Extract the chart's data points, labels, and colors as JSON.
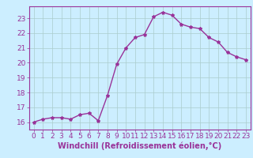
{
  "x": [
    0,
    1,
    2,
    3,
    4,
    5,
    6,
    7,
    8,
    9,
    10,
    11,
    12,
    13,
    14,
    15,
    16,
    17,
    18,
    19,
    20,
    21,
    22,
    23
  ],
  "y": [
    16.0,
    16.2,
    16.3,
    16.3,
    16.2,
    16.5,
    16.6,
    16.1,
    17.8,
    19.9,
    21.0,
    21.7,
    21.9,
    23.1,
    23.4,
    23.2,
    22.6,
    22.4,
    22.3,
    21.7,
    21.4,
    20.7,
    20.4,
    20.2
  ],
  "line_color": "#993399",
  "marker": "*",
  "marker_size": 3,
  "background_color": "#cceeff",
  "grid_color": "#aacccc",
  "tick_color": "#993399",
  "xlabel": "Windchill (Refroidissement éolien,°C)",
  "xlim": [
    -0.5,
    23.5
  ],
  "ylim": [
    15.5,
    23.8
  ],
  "yticks": [
    16,
    17,
    18,
    19,
    20,
    21,
    22,
    23
  ],
  "xticks": [
    0,
    1,
    2,
    3,
    4,
    5,
    6,
    7,
    8,
    9,
    10,
    11,
    12,
    13,
    14,
    15,
    16,
    17,
    18,
    19,
    20,
    21,
    22,
    23
  ],
  "xlabel_fontsize": 7,
  "tick_fontsize": 6.5,
  "line_width": 1.0,
  "spine_color": "#993399"
}
